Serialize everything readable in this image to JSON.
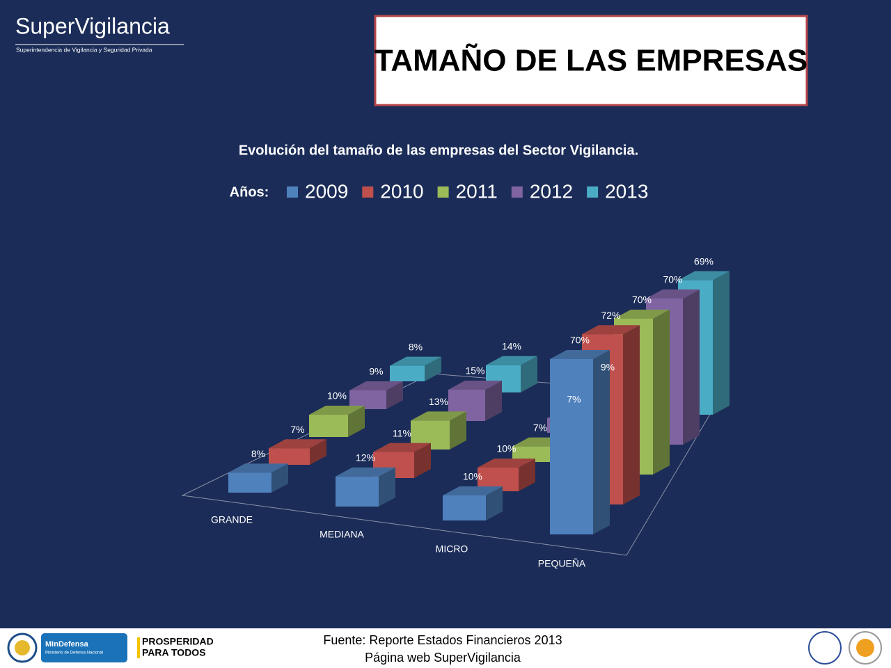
{
  "header": {
    "logo": "SuperVigilancia",
    "logo_subtitle": "Superintendencia de Vigilancia y Seguridad Privada"
  },
  "slide": {
    "title": "TAMAÑO DE LAS EMPRESAS"
  },
  "chart_data": {
    "type": "bar3d",
    "title": "Evolución del tamaño de las empresas del Sector Vigilancia.",
    "legend_title": "Años:",
    "categories": [
      "GRANDE",
      "MEDIANA",
      "MICRO",
      "PEQUEÑA"
    ],
    "series": [
      {
        "name": "2009",
        "color": "#4f81bd",
        "values": [
          8,
          12,
          10,
          70
        ],
        "value_labels": [
          "8%",
          "12%",
          "10%",
          "70%"
        ]
      },
      {
        "name": "2010",
        "color": "#c0504d",
        "values": [
          7,
          11,
          10,
          72
        ],
        "value_labels": [
          "7%",
          "11%",
          "10%",
          "72%"
        ]
      },
      {
        "name": "2011",
        "color": "#9bbb59",
        "values": [
          10,
          13,
          7,
          70
        ],
        "value_labels": [
          "10%",
          "13%",
          "7%",
          "70%"
        ]
      },
      {
        "name": "2012",
        "color": "#8064a2",
        "values": [
          9,
          15,
          7,
          70
        ],
        "value_labels": [
          "9%",
          "15%",
          "7%",
          "70%"
        ]
      },
      {
        "name": "2013",
        "color": "#4bacc6",
        "values": [
          8,
          14,
          9,
          69
        ],
        "value_labels": [
          "8%",
          "14%",
          "9%",
          "69%"
        ]
      }
    ]
  },
  "footer": {
    "ministry": "MinDefensa",
    "ministry_subtitle": "Ministerio de Defensa Nacional",
    "slogan_1": "PROSPERIDAD",
    "slogan_2": "PARA TODOS",
    "source_1": "Fuente: Reporte Estados Financieros 2013",
    "source_2": "Página web SuperVigilancia"
  }
}
